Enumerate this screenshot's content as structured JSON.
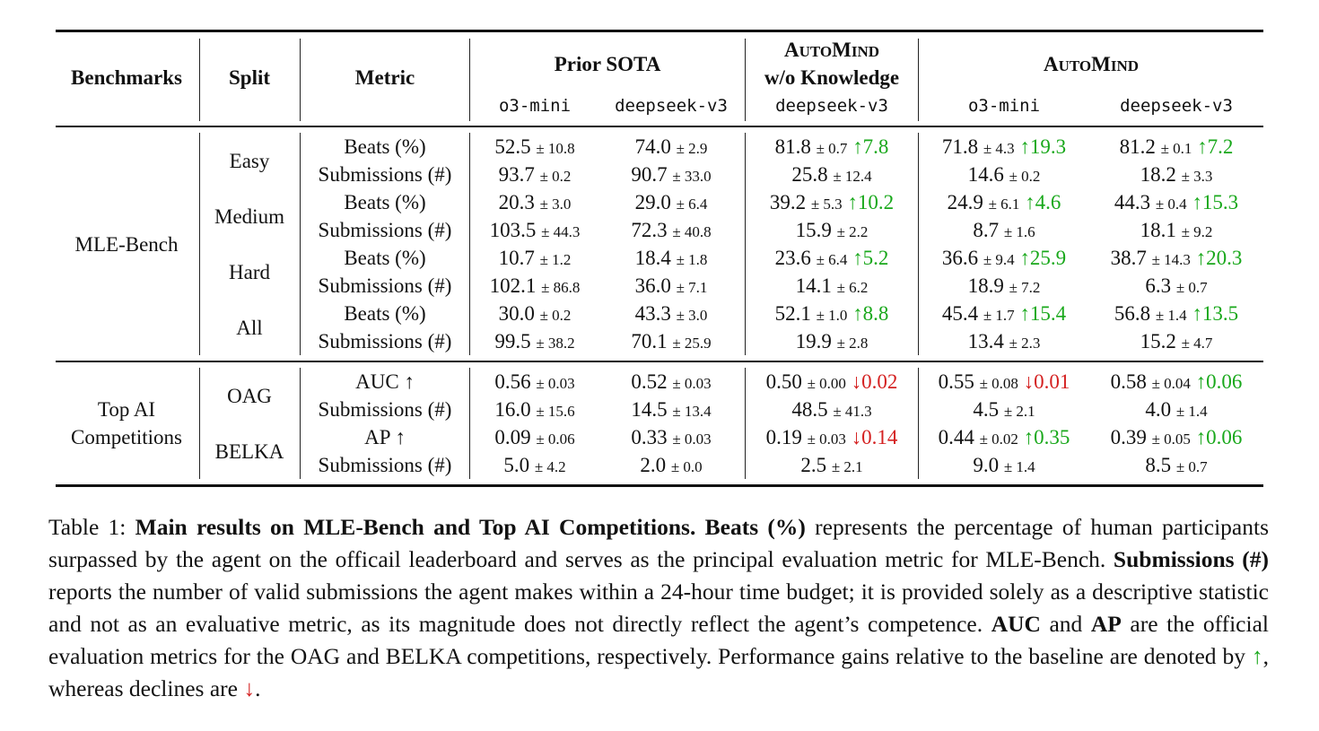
{
  "table": {
    "headers": {
      "benchmarks": "Benchmarks",
      "split": "Split",
      "metric": "Metric",
      "prior_sota": "Prior SOTA",
      "automind_wo_line1_cap": "A",
      "automind_wo_line1_rest1": "UTO",
      "automind_wo_line1_cap2": "M",
      "automind_wo_line1_rest2": "IND",
      "automind_wo_line2": "w/o Knowledge",
      "automind_cap": "A",
      "automind_rest1": "UTO",
      "automind_cap2": "M",
      "automind_rest2": "IND",
      "sub_o3": "o3-mini",
      "sub_ds": "deepseek-v3"
    },
    "sections": [
      {
        "benchmark_lines": [
          "MLE-Bench"
        ],
        "splits": [
          {
            "name": "Easy",
            "rows": [
              {
                "metric": "Beats (%)",
                "cells": [
                  {
                    "v": "52.5",
                    "pm": "± 10.8",
                    "d": "",
                    "dir": ""
                  },
                  {
                    "v": "74.0",
                    "pm": "± 2.9",
                    "d": "",
                    "dir": ""
                  },
                  {
                    "v": "81.8",
                    "pm": "± 0.7",
                    "d": "↑7.8",
                    "dir": "up"
                  },
                  {
                    "v": "71.8",
                    "pm": "± 4.3",
                    "d": "↑19.3",
                    "dir": "up"
                  },
                  {
                    "v": "81.2",
                    "pm": "± 0.1",
                    "d": "↑7.2",
                    "dir": "up"
                  }
                ]
              },
              {
                "metric": "Submissions (#)",
                "cells": [
                  {
                    "v": "93.7",
                    "pm": "± 0.2",
                    "d": "",
                    "dir": ""
                  },
                  {
                    "v": "90.7",
                    "pm": "± 33.0",
                    "d": "",
                    "dir": ""
                  },
                  {
                    "v": "25.8",
                    "pm": "± 12.4",
                    "d": "",
                    "dir": ""
                  },
                  {
                    "v": "14.6",
                    "pm": "± 0.2",
                    "d": "",
                    "dir": ""
                  },
                  {
                    "v": "18.2",
                    "pm": "± 3.3",
                    "d": "",
                    "dir": ""
                  }
                ]
              }
            ]
          },
          {
            "name": "Medium",
            "rows": [
              {
                "metric": "Beats (%)",
                "cells": [
                  {
                    "v": "20.3",
                    "pm": "± 3.0",
                    "d": "",
                    "dir": ""
                  },
                  {
                    "v": "29.0",
                    "pm": "± 6.4",
                    "d": "",
                    "dir": ""
                  },
                  {
                    "v": "39.2",
                    "pm": "± 5.3",
                    "d": "↑10.2",
                    "dir": "up"
                  },
                  {
                    "v": "24.9",
                    "pm": "± 6.1",
                    "d": "↑4.6",
                    "dir": "up"
                  },
                  {
                    "v": "44.3",
                    "pm": "± 0.4",
                    "d": "↑15.3",
                    "dir": "up"
                  }
                ]
              },
              {
                "metric": "Submissions (#)",
                "cells": [
                  {
                    "v": "103.5",
                    "pm": "± 44.3",
                    "d": "",
                    "dir": ""
                  },
                  {
                    "v": "72.3",
                    "pm": "± 40.8",
                    "d": "",
                    "dir": ""
                  },
                  {
                    "v": "15.9",
                    "pm": "± 2.2",
                    "d": "",
                    "dir": ""
                  },
                  {
                    "v": "8.7",
                    "pm": "± 1.6",
                    "d": "",
                    "dir": ""
                  },
                  {
                    "v": "18.1",
                    "pm": "± 9.2",
                    "d": "",
                    "dir": ""
                  }
                ]
              }
            ]
          },
          {
            "name": "Hard",
            "rows": [
              {
                "metric": "Beats (%)",
                "cells": [
                  {
                    "v": "10.7",
                    "pm": "± 1.2",
                    "d": "",
                    "dir": ""
                  },
                  {
                    "v": "18.4",
                    "pm": "± 1.8",
                    "d": "",
                    "dir": ""
                  },
                  {
                    "v": "23.6",
                    "pm": "± 6.4",
                    "d": "↑5.2",
                    "dir": "up"
                  },
                  {
                    "v": "36.6",
                    "pm": "± 9.4",
                    "d": "↑25.9",
                    "dir": "up"
                  },
                  {
                    "v": "38.7",
                    "pm": "± 14.3",
                    "d": "↑20.3",
                    "dir": "up"
                  }
                ]
              },
              {
                "metric": "Submissions (#)",
                "cells": [
                  {
                    "v": "102.1",
                    "pm": "± 86.8",
                    "d": "",
                    "dir": ""
                  },
                  {
                    "v": "36.0",
                    "pm": "± 7.1",
                    "d": "",
                    "dir": ""
                  },
                  {
                    "v": "14.1",
                    "pm": "± 6.2",
                    "d": "",
                    "dir": ""
                  },
                  {
                    "v": "18.9",
                    "pm": "± 7.2",
                    "d": "",
                    "dir": ""
                  },
                  {
                    "v": "6.3",
                    "pm": "± 0.7",
                    "d": "",
                    "dir": ""
                  }
                ]
              }
            ]
          },
          {
            "name": "All",
            "rows": [
              {
                "metric": "Beats (%)",
                "cells": [
                  {
                    "v": "30.0",
                    "pm": "± 0.2",
                    "d": "",
                    "dir": ""
                  },
                  {
                    "v": "43.3",
                    "pm": "± 3.0",
                    "d": "",
                    "dir": ""
                  },
                  {
                    "v": "52.1",
                    "pm": "± 1.0",
                    "d": "↑8.8",
                    "dir": "up"
                  },
                  {
                    "v": "45.4",
                    "pm": "± 1.7",
                    "d": "↑15.4",
                    "dir": "up"
                  },
                  {
                    "v": "56.8",
                    "pm": "± 1.4",
                    "d": "↑13.5",
                    "dir": "up"
                  }
                ]
              },
              {
                "metric": "Submissions (#)",
                "cells": [
                  {
                    "v": "99.5",
                    "pm": "± 38.2",
                    "d": "",
                    "dir": ""
                  },
                  {
                    "v": "70.1",
                    "pm": "± 25.9",
                    "d": "",
                    "dir": ""
                  },
                  {
                    "v": "19.9",
                    "pm": "± 2.8",
                    "d": "",
                    "dir": ""
                  },
                  {
                    "v": "13.4",
                    "pm": "± 2.3",
                    "d": "",
                    "dir": ""
                  },
                  {
                    "v": "15.2",
                    "pm": "± 4.7",
                    "d": "",
                    "dir": ""
                  }
                ]
              }
            ]
          }
        ]
      },
      {
        "benchmark_lines": [
          "Top AI",
          "Competitions"
        ],
        "splits": [
          {
            "name": "OAG",
            "rows": [
              {
                "metric": "AUC ↑",
                "cells": [
                  {
                    "v": "0.56",
                    "pm": "± 0.03",
                    "d": "",
                    "dir": ""
                  },
                  {
                    "v": "0.52",
                    "pm": "± 0.03",
                    "d": "",
                    "dir": ""
                  },
                  {
                    "v": "0.50",
                    "pm": "± 0.00",
                    "d": "↓0.02",
                    "dir": "down"
                  },
                  {
                    "v": "0.55",
                    "pm": "± 0.08",
                    "d": "↓0.01",
                    "dir": "down"
                  },
                  {
                    "v": "0.58",
                    "pm": "± 0.04",
                    "d": "↑0.06",
                    "dir": "up"
                  }
                ]
              },
              {
                "metric": "Submissions (#)",
                "cells": [
                  {
                    "v": "16.0",
                    "pm": "± 15.6",
                    "d": "",
                    "dir": ""
                  },
                  {
                    "v": "14.5",
                    "pm": "± 13.4",
                    "d": "",
                    "dir": ""
                  },
                  {
                    "v": "48.5",
                    "pm": "± 41.3",
                    "d": "",
                    "dir": ""
                  },
                  {
                    "v": "4.5",
                    "pm": "± 2.1",
                    "d": "",
                    "dir": ""
                  },
                  {
                    "v": "4.0",
                    "pm": "± 1.4",
                    "d": "",
                    "dir": ""
                  }
                ]
              }
            ]
          },
          {
            "name": "BELKA",
            "rows": [
              {
                "metric": "AP ↑",
                "cells": [
                  {
                    "v": "0.09",
                    "pm": "± 0.06",
                    "d": "",
                    "dir": ""
                  },
                  {
                    "v": "0.33",
                    "pm": "± 0.03",
                    "d": "",
                    "dir": ""
                  },
                  {
                    "v": "0.19",
                    "pm": "± 0.03",
                    "d": "↓0.14",
                    "dir": "down"
                  },
                  {
                    "v": "0.44",
                    "pm": "± 0.02",
                    "d": "↑0.35",
                    "dir": "up"
                  },
                  {
                    "v": "0.39",
                    "pm": "± 0.05",
                    "d": "↑0.06",
                    "dir": "up"
                  }
                ]
              },
              {
                "metric": "Submissions (#)",
                "cells": [
                  {
                    "v": "5.0",
                    "pm": "± 4.2",
                    "d": "",
                    "dir": ""
                  },
                  {
                    "v": "2.0",
                    "pm": "± 0.0",
                    "d": "",
                    "dir": ""
                  },
                  {
                    "v": "2.5",
                    "pm": "± 2.1",
                    "d": "",
                    "dir": ""
                  },
                  {
                    "v": "9.0",
                    "pm": "± 1.4",
                    "d": "",
                    "dir": ""
                  },
                  {
                    "v": "8.5",
                    "pm": "± 0.7",
                    "d": "",
                    "dir": ""
                  }
                ]
              }
            ]
          }
        ]
      }
    ]
  },
  "caption": {
    "label": "Table 1: ",
    "title": "Main results on MLE-Bench and Top AI Competitions.",
    "beats_term": "Beats (%)",
    "beats_text": " represents the percentage of human participants surpassed by the agent on the officail leaderboard and serves as the principal evaluation metric for MLE-Bench. ",
    "subs_term": "Submissions (#)",
    "subs_text": " reports the number of valid submissions the agent makes within a 24-hour time budget; it is provided solely as a descriptive statistic and not as an evaluative metric, as its magnitude does not directly reflect the agent’s competence. ",
    "auc_term": "AUC",
    "and_text": " and ",
    "ap_term": "AP",
    "metrics_text": " are the official evaluation metrics for the OAG and BELKA competitions, respectively. Performance gains relative to the baseline are denoted by ",
    "up_symbol": "↑",
    "whereas_text": ", whereas declines are ",
    "down_symbol": "↓",
    "end_text": "."
  },
  "colors": {
    "gain": "#19a81b",
    "decline": "#d42020"
  }
}
